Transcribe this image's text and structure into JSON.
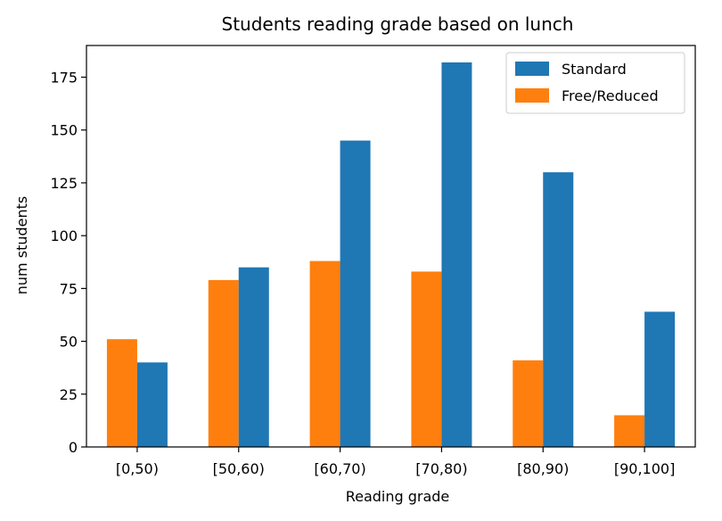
{
  "chart_data": {
    "type": "bar",
    "title": "Students reading grade based on lunch",
    "xlabel": "Reading grade",
    "ylabel": "num students",
    "categories": [
      "[0,50)",
      "[50,60)",
      "[60,70)",
      "[70,80)",
      "[80,90)",
      "[90,100]"
    ],
    "series": [
      {
        "name": "Free/Reduced",
        "color": "#ff7f0e",
        "values": [
          51,
          79,
          88,
          83,
          41,
          15
        ]
      },
      {
        "name": "Standard",
        "color": "#1f77b4",
        "values": [
          40,
          85,
          145,
          182,
          130,
          64
        ]
      }
    ],
    "ylim": [
      0,
      190
    ],
    "yticks": [
      0,
      25,
      50,
      75,
      100,
      125,
      150,
      175
    ],
    "legend": {
      "placement": "top-right",
      "order": [
        "Standard",
        "Free/Reduced"
      ]
    },
    "grid": false
  }
}
